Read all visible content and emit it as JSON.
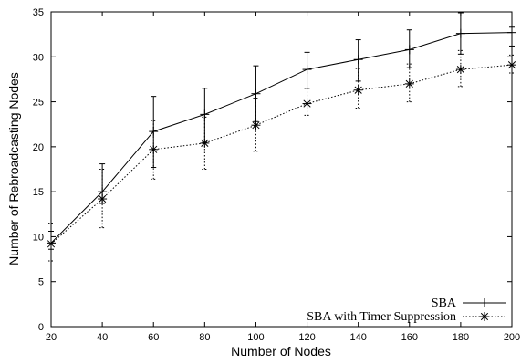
{
  "chart_data": {
    "type": "line",
    "title": "",
    "xlabel": "Number of Nodes",
    "ylabel": "Number of Rebroadcasting Nodes",
    "xlim": [
      20,
      200
    ],
    "ylim": [
      0,
      35
    ],
    "xticks": [
      20,
      40,
      60,
      80,
      100,
      120,
      140,
      160,
      180,
      200
    ],
    "yticks": [
      0,
      5,
      10,
      15,
      20,
      25,
      30,
      35
    ],
    "grid": false,
    "legend_position": "bottom-right",
    "series": [
      {
        "name": "SBA",
        "line_style": "solid",
        "marker": "plus",
        "x": [
          20,
          40,
          60,
          80,
          100,
          120,
          140,
          160,
          180,
          200
        ],
        "y": [
          9.3,
          15.0,
          21.7,
          23.6,
          25.9,
          28.6,
          29.7,
          30.8,
          32.6,
          32.7
        ],
        "err_low": [
          8.6,
          13.7,
          17.7,
          20.5,
          22.8,
          26.5,
          27.3,
          28.8,
          30.3,
          31.2
        ],
        "err_high": [
          10.6,
          18.1,
          25.6,
          26.5,
          29.0,
          30.5,
          31.9,
          33.0,
          34.9,
          33.3
        ]
      },
      {
        "name": "SBA with Timer Suppression",
        "line_style": "dotted",
        "marker": "asterisk",
        "x": [
          20,
          40,
          60,
          80,
          100,
          120,
          140,
          160,
          180,
          200
        ],
        "y": [
          9.2,
          14.2,
          19.7,
          20.4,
          22.4,
          24.8,
          26.3,
          27.0,
          28.6,
          29.1
        ],
        "err_low": [
          7.3,
          11.0,
          16.4,
          17.5,
          19.5,
          23.5,
          24.3,
          25.0,
          26.7,
          28.2
        ],
        "err_high": [
          11.5,
          17.5,
          22.9,
          23.3,
          25.4,
          26.5,
          28.7,
          29.2,
          30.7,
          30.2
        ]
      }
    ]
  }
}
